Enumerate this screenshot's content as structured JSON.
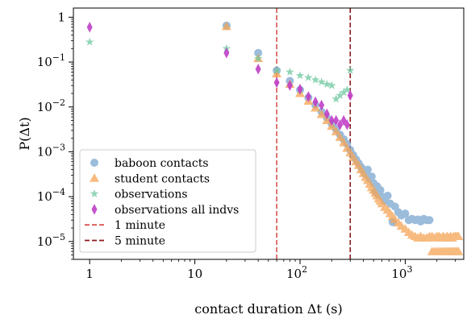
{
  "chart_data": {
    "type": "scatter",
    "xlabel": "contact duration Δt (s)",
    "ylabel": "P(Δt)",
    "xscale": "log",
    "yscale": "log",
    "xlim": [
      0.7,
      3600
    ],
    "ylim": [
      4e-06,
      1.6
    ],
    "x_ticks": [
      {
        "value": 1,
        "label": "1"
      },
      {
        "value": 10,
        "label": "10"
      },
      {
        "value": 100,
        "label": "10",
        "exp": "2"
      },
      {
        "value": 1000,
        "label": "10",
        "exp": "3"
      }
    ],
    "y_ticks": [
      {
        "value": 1,
        "label": "1"
      },
      {
        "value": 0.1,
        "label": "10",
        "exp": "−1"
      },
      {
        "value": 0.01,
        "label": "10",
        "exp": "−2"
      },
      {
        "value": 0.001,
        "label": "10",
        "exp": "−3"
      },
      {
        "value": 0.0001,
        "label": "10",
        "exp": "−4"
      },
      {
        "value": 1e-05,
        "label": "10",
        "exp": "−5"
      }
    ],
    "grid": false,
    "legend_position": "lower-left",
    "series": [
      {
        "name": "baboon contacts",
        "marker": "circle",
        "color": "#7aa6cf",
        "x": [
          20,
          40,
          60,
          80,
          100,
          120,
          140,
          160,
          180,
          200,
          220,
          240,
          260,
          280,
          300,
          320,
          340,
          360,
          380,
          400,
          420,
          440,
          460,
          480,
          500,
          520,
          540,
          560,
          580,
          600,
          640,
          680,
          720,
          760,
          800,
          860,
          920,
          1000,
          1080,
          1160,
          1240,
          1320,
          1400,
          1500,
          1600,
          1700
        ],
        "y": [
          0.65,
          0.16,
          0.065,
          0.038,
          0.024,
          0.016,
          0.011,
          0.0078,
          0.0058,
          0.0042,
          0.0032,
          0.0024,
          0.0019,
          0.0015,
          0.0011,
          0.00085,
          0.00068,
          0.00056,
          0.00046,
          0.00038,
          0.00032,
          0.0004,
          0.00025,
          0.00028,
          0.0002,
          0.00013,
          0.00017,
          0.00011,
          0.00014,
          0.0001,
          8e-05,
          0.000105,
          7e-05,
          2.7e-05,
          6e-05,
          4.5e-05,
          3.8e-05,
          4.2e-05,
          3e-05,
          3.2e-05,
          3e-05,
          3.1e-05,
          2.8e-05,
          3.2e-05,
          3e-05,
          3e-05
        ]
      },
      {
        "name": "student contacts",
        "marker": "triangle",
        "color": "#f5a455",
        "x": [
          20,
          40,
          60,
          80,
          100,
          120,
          140,
          160,
          180,
          200,
          220,
          240,
          260,
          280,
          300,
          320,
          340,
          360,
          380,
          400,
          420,
          440,
          460,
          480,
          500,
          520,
          540,
          560,
          580,
          600,
          640,
          680,
          720,
          760,
          800,
          860,
          920,
          1000,
          1080,
          1160,
          1240,
          1320,
          1400,
          1500,
          1600,
          1700,
          1800,
          1900,
          2000,
          2100,
          2200,
          2300,
          2400,
          2500,
          2600,
          2700,
          2800,
          2900,
          3000,
          3100,
          3200,
          1800,
          1900,
          2000,
          2100,
          2200,
          2300,
          2400,
          2500,
          2600,
          2700,
          2800,
          2900,
          3000,
          3100,
          3200
        ],
        "y": [
          0.62,
          0.12,
          0.055,
          0.032,
          0.02,
          0.0135,
          0.0095,
          0.0068,
          0.005,
          0.0037,
          0.0028,
          0.0021,
          0.0016,
          0.0012,
          0.00095,
          0.00075,
          0.0006,
          0.0005,
          0.0004,
          0.00033,
          0.00027,
          0.00023,
          0.00019,
          0.00016,
          0.00014,
          0.00012,
          0.000105,
          9e-05,
          8e-05,
          7e-05,
          5.8e-05,
          5e-05,
          4.2e-05,
          3.6e-05,
          3.1e-05,
          2.6e-05,
          2.2e-05,
          1.9e-05,
          1.6e-05,
          1.4e-05,
          1.3e-05,
          1.2e-05,
          1.3e-05,
          1.2e-05,
          1.2e-05,
          1.3e-05,
          1.3e-05,
          1.2e-05,
          1.3e-05,
          1.3e-05,
          1.2e-05,
          1.3e-05,
          1.2e-05,
          1.3e-05,
          1.2e-05,
          1.3e-05,
          1.2e-05,
          1.3e-05,
          1.3e-05,
          1.3e-05,
          1.3e-05,
          6e-06,
          6e-06,
          6e-06,
          6e-06,
          6e-06,
          6e-06,
          6e-06,
          6e-06,
          6e-06,
          6e-06,
          6e-06,
          6e-06,
          6e-06,
          6e-06,
          6e-06
        ]
      },
      {
        "name": "observations",
        "marker": "star",
        "color": "#6dc7a0",
        "x": [
          1,
          20,
          40,
          60,
          80,
          100,
          120,
          140,
          160,
          180,
          200,
          220,
          240,
          260,
          280,
          300
        ],
        "y": [
          0.28,
          0.2,
          0.12,
          0.065,
          0.06,
          0.05,
          0.045,
          0.04,
          0.036,
          0.032,
          0.03,
          0.015,
          0.018,
          0.021,
          0.024,
          0.065
        ]
      },
      {
        "name": "observations all indvs",
        "marker": "diamond",
        "color": "#c03fc7",
        "x": [
          1,
          20,
          40,
          60,
          80,
          100,
          120,
          140,
          160,
          180,
          200,
          220,
          240,
          260,
          280,
          300
        ],
        "y": [
          0.6,
          0.16,
          0.07,
          0.035,
          0.03,
          0.025,
          0.017,
          0.013,
          0.011,
          0.007,
          0.005,
          0.005,
          0.004,
          0.005,
          0.004,
          0.018
        ]
      }
    ],
    "vlines": [
      {
        "name": "1 minute",
        "x": 60,
        "color": "#d9534f",
        "style": "dashed"
      },
      {
        "name": "5 minute",
        "x": 300,
        "color": "#8b1a1a",
        "style": "dashed"
      }
    ]
  }
}
